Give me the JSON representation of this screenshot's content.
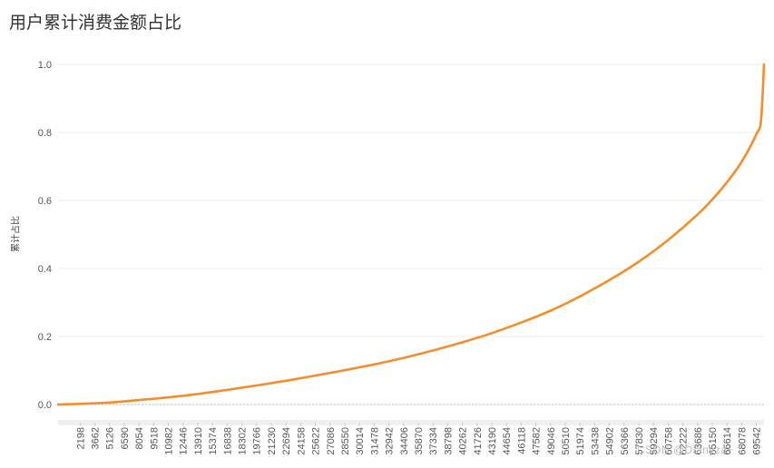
{
  "chart_data": {
    "type": "line",
    "title": "用户累计消费金额占比",
    "xlabel": "",
    "ylabel": "累计占比",
    "xlim": [
      0,
      70000
    ],
    "ylim": [
      0,
      1.0
    ],
    "grid": true,
    "y_ticks": [
      "0.0",
      "0.2",
      "0.4",
      "0.6",
      "0.8",
      "1.0"
    ],
    "x_ticks": [
      2198,
      3662,
      5126,
      6590,
      8054,
      9518,
      10982,
      12446,
      13910,
      15374,
      16838,
      18302,
      19766,
      21230,
      22694,
      24158,
      25622,
      27086,
      28550,
      30014,
      31478,
      32942,
      34406,
      35870,
      37334,
      38798,
      40262,
      41726,
      43190,
      44654,
      46118,
      47582,
      49046,
      50510,
      51974,
      53438,
      54902,
      56366,
      57830,
      59294,
      60758,
      62222,
      63686,
      65150,
      66614,
      68078,
      69542
    ],
    "series": [
      {
        "color": "#f28e2b",
        "x": [
          0,
          2198,
          5126,
          8054,
          10982,
          13910,
          16838,
          19766,
          22694,
          25622,
          28550,
          31478,
          34406,
          37334,
          40262,
          43190,
          46118,
          49046,
          51974,
          54902,
          57830,
          60758,
          63686,
          65150,
          66614,
          68078,
          69542,
          70000,
          70300
        ],
        "y": [
          0.0,
          0.002,
          0.006,
          0.013,
          0.021,
          0.031,
          0.043,
          0.056,
          0.07,
          0.085,
          0.101,
          0.118,
          0.137,
          0.159,
          0.183,
          0.21,
          0.241,
          0.276,
          0.318,
          0.366,
          0.42,
          0.484,
          0.559,
          0.603,
          0.654,
          0.714,
          0.795,
          0.837,
          1.0
        ]
      }
    ]
  },
  "watermark": "CSDN @Dianyza~"
}
